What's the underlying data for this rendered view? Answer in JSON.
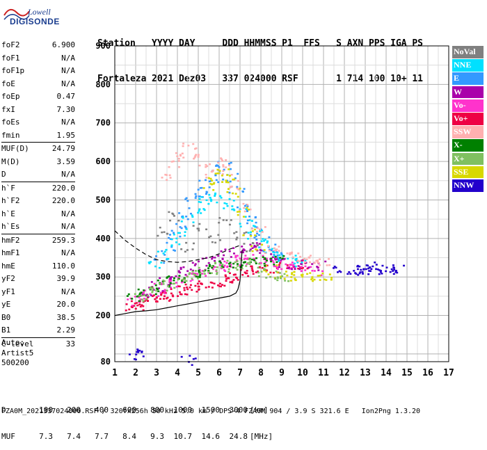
{
  "logo": {
    "line1": "Lowell",
    "line2": "DIGISONDE"
  },
  "header": {
    "row1": [
      "Station",
      "YYYY",
      "DAY",
      "DDD",
      "HHMMSS",
      "P1",
      "FFS",
      "S",
      "AXN",
      "PPS",
      "IGA",
      "PS"
    ],
    "row2": [
      "Fortaleza",
      "2021",
      "Dez03",
      "337",
      "024000",
      "RSF",
      "",
      "1",
      "714",
      "100",
      "10+",
      "11"
    ]
  },
  "params": {
    "group1": [
      {
        "key": "foF2",
        "value": "6.900"
      },
      {
        "key": "foF1",
        "value": "N/A"
      },
      {
        "key": "foF1p",
        "value": "N/A"
      },
      {
        "key": "foE",
        "value": "N/A"
      },
      {
        "key": "foEp",
        "value": "0.47"
      },
      {
        "key": "fxI",
        "value": "7.30"
      },
      {
        "key": "foEs",
        "value": "N/A"
      },
      {
        "key": "fmin",
        "value": "1.95"
      }
    ],
    "group2": [
      {
        "key": "MUF(D)",
        "value": "24.79"
      },
      {
        "key": "M(D)",
        "value": "3.59"
      },
      {
        "key": "D",
        "value": "N/A"
      }
    ],
    "group3": [
      {
        "key": "h`F",
        "value": "220.0"
      },
      {
        "key": "h`F2",
        "value": "220.0"
      },
      {
        "key": "h`E",
        "value": "N/A"
      },
      {
        "key": "h`Es",
        "value": "N/A"
      }
    ],
    "group4": [
      {
        "key": "hmF2",
        "value": "259.3"
      },
      {
        "key": "hmF1",
        "value": "N/A"
      },
      {
        "key": "hmE",
        "value": "110.0"
      },
      {
        "key": "yF2",
        "value": "39.9"
      },
      {
        "key": "yF1",
        "value": "N/A"
      },
      {
        "key": "yE",
        "value": "20.0"
      },
      {
        "key": "B0",
        "value": "38.5"
      },
      {
        "key": "B1",
        "value": "2.29"
      }
    ],
    "group5": [
      {
        "key": "C-level",
        "value": "33"
      }
    ]
  },
  "auto": {
    "line1": "Auto:",
    "line2": "Artist5",
    "line3": "500200"
  },
  "legend": [
    {
      "label": "NoVal",
      "color": "#808080"
    },
    {
      "label": "NNE",
      "color": "#00e0ff"
    },
    {
      "label": "E",
      "color": "#3399ff"
    },
    {
      "label": "W",
      "color": "#aa00aa"
    },
    {
      "label": "Vo-",
      "color": "#ff33cc"
    },
    {
      "label": "Vo+",
      "color": "#ee0044"
    },
    {
      "label": "SSW",
      "color": "#ffb0b0"
    },
    {
      "label": "X-",
      "color": "#008000"
    },
    {
      "label": "X+",
      "color": "#80c060"
    },
    {
      "label": "SSE",
      "color": "#d8d800"
    },
    {
      "label": "NNW",
      "color": "#2200cc"
    }
  ],
  "footer": {
    "d_label": "D",
    "d_values": [
      "100",
      "200",
      "400",
      "600",
      "800",
      "1000",
      "1500",
      "3000"
    ],
    "d_unit": "[km]",
    "muf_label": "MUF",
    "muf_values": [
      "7.3",
      "7.4",
      "7.7",
      "8.4",
      "9.3",
      "10.7",
      "14.6",
      "24.8"
    ],
    "muf_unit": "[MHz]",
    "fileline": "FZA0M_2021337024000.RSF / 320fx256h 50 kHz 5.0 km / DPS-4 FZA0M 904 / 3.9 S 321.6 E   Ion2Png 1.3.20"
  },
  "chart_data": {
    "type": "scatter",
    "title": "",
    "xlabel": "",
    "ylabel": "",
    "xlim": [
      1,
      17
    ],
    "ylim": [
      80,
      900
    ],
    "x_ticks": [
      1,
      2,
      3,
      4,
      5,
      6,
      7,
      8,
      9,
      10,
      11,
      12,
      13,
      14,
      15,
      16,
      17
    ],
    "y_ticks": [
      80,
      200,
      300,
      400,
      500,
      600,
      700,
      800,
      900
    ],
    "grid": true,
    "x_minor_step": 0.5,
    "y_minor_step": 50,
    "legend_placement": "right",
    "series": [
      {
        "color": "#ee0044",
        "points": [
          [
            1.8,
            225
          ],
          [
            2.0,
            228
          ],
          [
            2.2,
            232
          ],
          [
            2.5,
            236
          ],
          [
            2.8,
            242
          ],
          [
            3.0,
            248
          ],
          [
            3.3,
            252
          ],
          [
            3.6,
            258
          ],
          [
            4.0,
            262
          ],
          [
            4.3,
            266
          ],
          [
            4.6,
            270
          ],
          [
            5.0,
            275
          ],
          [
            5.3,
            280
          ],
          [
            5.6,
            285
          ],
          [
            6.0,
            290
          ],
          [
            6.3,
            296
          ],
          [
            6.6,
            300
          ],
          [
            7.0,
            305
          ],
          [
            7.3,
            312
          ],
          [
            7.6,
            318
          ],
          [
            8.0,
            320
          ],
          [
            8.5,
            325
          ],
          [
            9.0,
            330
          ],
          [
            9.5,
            330
          ],
          [
            10.0,
            335
          ]
        ]
      },
      {
        "color": "#ff33cc",
        "points": [
          [
            1.9,
            240
          ],
          [
            2.3,
            250
          ],
          [
            2.7,
            262
          ],
          [
            3.1,
            272
          ],
          [
            3.5,
            280
          ],
          [
            3.9,
            288
          ],
          [
            4.3,
            296
          ],
          [
            4.7,
            304
          ],
          [
            5.1,
            310
          ],
          [
            5.5,
            318
          ],
          [
            5.9,
            325
          ],
          [
            6.3,
            332
          ],
          [
            6.7,
            340
          ],
          [
            7.1,
            345
          ],
          [
            7.5,
            350
          ],
          [
            7.9,
            345
          ],
          [
            8.3,
            340
          ],
          [
            8.7,
            335
          ],
          [
            9.1,
            330
          ],
          [
            9.6,
            325
          ],
          [
            10.2,
            320
          ],
          [
            10.6,
            318
          ]
        ]
      },
      {
        "color": "#aa00aa",
        "points": [
          [
            2.4,
            260
          ],
          [
            2.9,
            278
          ],
          [
            3.4,
            292
          ],
          [
            3.9,
            305
          ],
          [
            4.4,
            318
          ],
          [
            4.9,
            330
          ],
          [
            5.4,
            342
          ],
          [
            5.9,
            355
          ],
          [
            6.4,
            365
          ],
          [
            6.9,
            372
          ],
          [
            7.4,
            378
          ],
          [
            7.8,
            382
          ],
          [
            8.2,
            360
          ],
          [
            8.6,
            350
          ],
          [
            9.0,
            340
          ],
          [
            9.6,
            335
          ],
          [
            10.1,
            332
          ],
          [
            10.7,
            330
          ]
        ]
      },
      {
        "color": "#3399ff",
        "points": [
          [
            3.2,
            350
          ],
          [
            3.5,
            380
          ],
          [
            3.8,
            410
          ],
          [
            4.1,
            440
          ],
          [
            4.4,
            470
          ],
          [
            4.7,
            500
          ],
          [
            5.0,
            520
          ],
          [
            5.3,
            540
          ],
          [
            5.6,
            560
          ],
          [
            5.9,
            580
          ],
          [
            6.2,
            590
          ],
          [
            6.5,
            560
          ],
          [
            6.8,
            530
          ],
          [
            7.1,
            480
          ],
          [
            7.4,
            450
          ],
          [
            7.7,
            420
          ],
          [
            8.0,
            400
          ],
          [
            8.3,
            380
          ],
          [
            8.6,
            360
          ]
        ]
      },
      {
        "color": "#00e0ff",
        "points": [
          [
            2.9,
            330
          ],
          [
            3.3,
            360
          ],
          [
            3.7,
            390
          ],
          [
            4.1,
            420
          ],
          [
            4.5,
            450
          ],
          [
            4.9,
            480
          ],
          [
            5.3,
            500
          ],
          [
            5.7,
            510
          ],
          [
            6.1,
            505
          ],
          [
            6.5,
            490
          ],
          [
            6.9,
            470
          ],
          [
            7.3,
            440
          ],
          [
            7.7,
            410
          ],
          [
            8.1,
            390
          ],
          [
            8.5,
            370
          ],
          [
            8.9,
            355
          ],
          [
            9.3,
            345
          ],
          [
            9.8,
            340
          ]
        ]
      },
      {
        "color": "#ffb0b0",
        "points": [
          [
            3.5,
            560
          ],
          [
            3.8,
            600
          ],
          [
            4.2,
            620
          ],
          [
            4.5,
            640
          ],
          [
            4.9,
            610
          ],
          [
            5.3,
            590
          ],
          [
            5.6,
            570
          ],
          [
            6.0,
            600
          ],
          [
            6.4,
            580
          ],
          [
            6.8,
            540
          ],
          [
            7.2,
            480
          ],
          [
            7.8,
            420
          ],
          [
            8.5,
            370
          ],
          [
            9.0,
            360
          ],
          [
            9.5,
            355
          ],
          [
            10.0,
            350
          ],
          [
            10.5,
            345
          ],
          [
            11.0,
            340
          ]
        ]
      },
      {
        "color": "#d8d800",
        "points": [
          [
            5.5,
            540
          ],
          [
            5.8,
            560
          ],
          [
            6.1,
            570
          ],
          [
            6.4,
            555
          ],
          [
            6.7,
            520
          ],
          [
            7.0,
            470
          ],
          [
            7.4,
            420
          ],
          [
            7.8,
            380
          ],
          [
            8.4,
            320
          ],
          [
            8.9,
            310
          ],
          [
            9.3,
            305
          ],
          [
            9.8,
            305
          ],
          [
            10.2,
            302
          ],
          [
            10.6,
            300
          ],
          [
            11.0,
            305
          ]
        ]
      },
      {
        "color": "#008000",
        "points": [
          [
            1.9,
            245
          ],
          [
            2.3,
            258
          ],
          [
            2.8,
            270
          ],
          [
            3.3,
            282
          ],
          [
            3.8,
            292
          ],
          [
            4.3,
            300
          ],
          [
            4.8,
            310
          ],
          [
            5.3,
            318
          ],
          [
            5.8,
            325
          ],
          [
            6.3,
            330
          ],
          [
            6.8,
            335
          ],
          [
            7.3,
            338
          ],
          [
            7.8,
            340
          ],
          [
            8.3,
            342
          ],
          [
            8.8,
            345
          ]
        ]
      },
      {
        "color": "#80c060",
        "points": [
          [
            2.1,
            250
          ],
          [
            2.6,
            262
          ],
          [
            3.1,
            276
          ],
          [
            3.6,
            286
          ],
          [
            4.1,
            296
          ],
          [
            4.6,
            306
          ],
          [
            5.1,
            314
          ],
          [
            5.6,
            322
          ],
          [
            6.1,
            328
          ],
          [
            6.6,
            332
          ],
          [
            7.1,
            336
          ],
          [
            7.6,
            338
          ],
          [
            8.1,
            312
          ],
          [
            8.6,
            305
          ],
          [
            9.1,
            300
          ]
        ]
      },
      {
        "color": "#2200cc",
        "points": [
          [
            11.7,
            325
          ],
          [
            12.4,
            322
          ],
          [
            12.6,
            320
          ],
          [
            12.8,
            325
          ],
          [
            13.0,
            322
          ],
          [
            13.3,
            328
          ],
          [
            13.4,
            320
          ],
          [
            13.9,
            320
          ],
          [
            14.3,
            322
          ],
          [
            14.6,
            324
          ],
          [
            1.9,
            100
          ],
          [
            2.0,
            108
          ],
          [
            4.5,
            85
          ]
        ]
      },
      {
        "color": "#808080",
        "points": [
          [
            3.3,
            420
          ],
          [
            3.9,
            460
          ],
          [
            4.4,
            380
          ],
          [
            5.0,
            430
          ],
          [
            5.7,
            400
          ],
          [
            6.2,
            450
          ],
          [
            6.9,
            410
          ],
          [
            7.5,
            380
          ]
        ]
      }
    ],
    "lines": [
      {
        "style": "dashed",
        "points": [
          [
            1.0,
            420
          ],
          [
            1.5,
            395
          ],
          [
            2.0,
            375
          ],
          [
            2.5,
            358
          ],
          [
            3.0,
            345
          ],
          [
            3.5,
            340
          ],
          [
            4.0,
            338
          ],
          [
            4.5,
            340
          ],
          [
            5.0,
            345
          ],
          [
            5.5,
            350
          ],
          [
            6.0,
            360
          ],
          [
            6.5,
            372
          ],
          [
            7.0,
            382
          ]
        ]
      },
      {
        "style": "solid",
        "points": [
          [
            1.0,
            200
          ],
          [
            1.5,
            205
          ],
          [
            2.0,
            210
          ],
          [
            2.5,
            212
          ],
          [
            3.0,
            215
          ],
          [
            3.5,
            220
          ],
          [
            4.0,
            225
          ],
          [
            4.5,
            230
          ],
          [
            5.0,
            235
          ],
          [
            5.5,
            240
          ],
          [
            6.0,
            245
          ],
          [
            6.5,
            250
          ],
          [
            6.8,
            258
          ],
          [
            6.9,
            268
          ],
          [
            7.0,
            290
          ],
          [
            7.05,
            330
          ],
          [
            7.1,
            370
          ]
        ]
      }
    ]
  }
}
